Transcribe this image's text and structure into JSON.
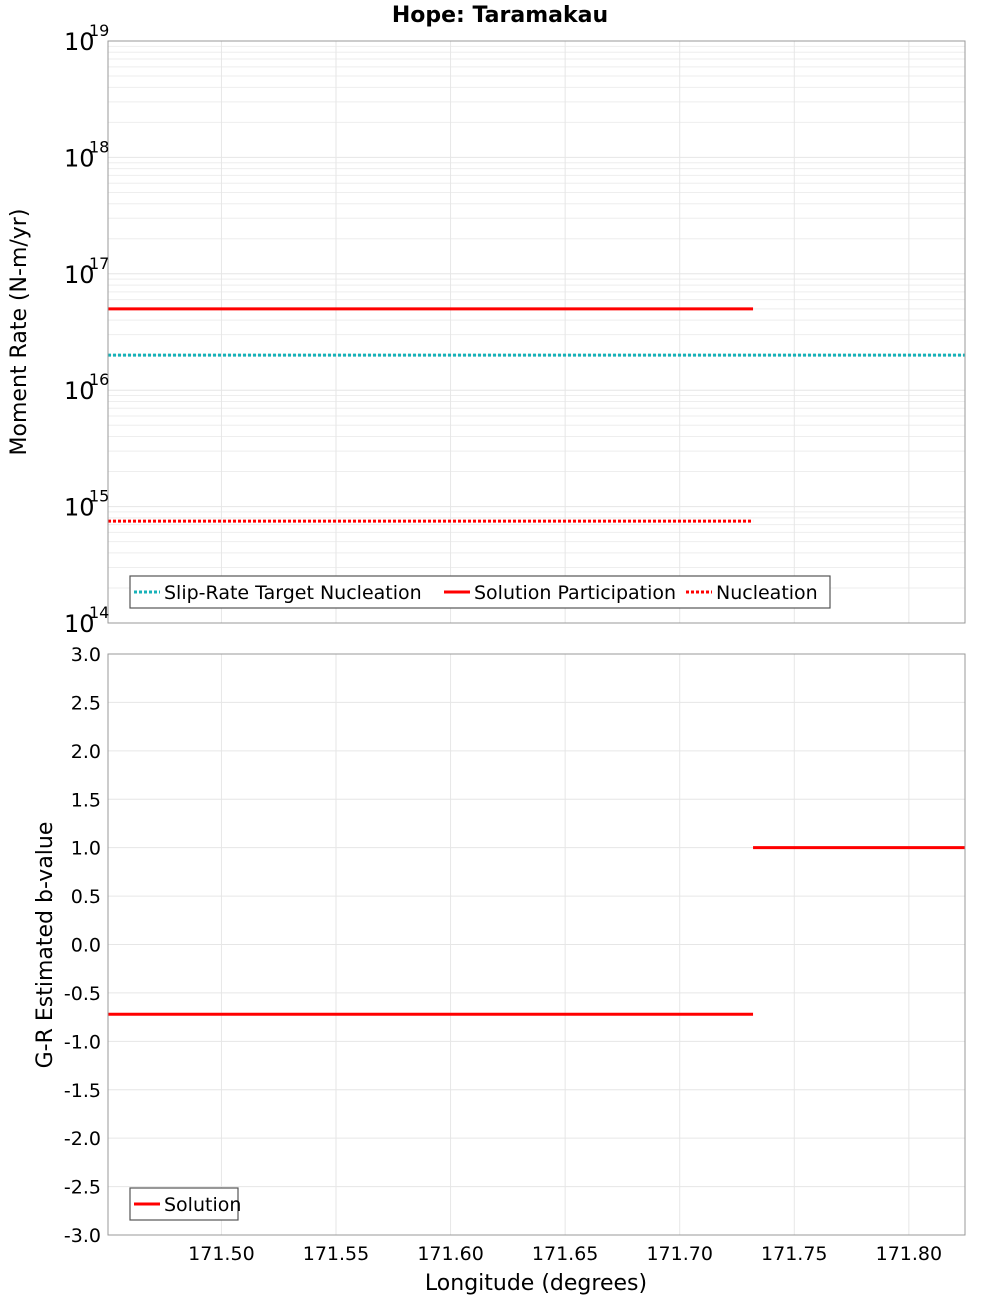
{
  "chart_data": [
    {
      "type": "line",
      "title": "Hope: Taramakau",
      "xlabel": "",
      "ylabel": "Moment Rate (N-m/yr)",
      "yscale": "log",
      "ylim_exp": [
        14,
        19
      ],
      "y_ticks": [
        {
          "base": "10",
          "exp": "14",
          "value": 14
        },
        {
          "base": "10",
          "exp": "15",
          "value": 15
        },
        {
          "base": "10",
          "exp": "16",
          "value": 16
        },
        {
          "base": "10",
          "exp": "17",
          "value": 17
        },
        {
          "base": "10",
          "exp": "18",
          "value": 18
        },
        {
          "base": "10",
          "exp": "19",
          "value": 19
        }
      ],
      "xlim": [
        171.4505,
        171.8245
      ],
      "series": [
        {
          "name": "Slip-Rate Target Nucleation",
          "color": "#17b2b8",
          "style": "dotted",
          "segments": [
            {
              "x0": 171.4505,
              "x1": 171.8245,
              "value": 2e+16
            }
          ]
        },
        {
          "name": "Solution Participation",
          "color": "#ff0000",
          "style": "solid",
          "segments": [
            {
              "x0": 171.4505,
              "x1": 171.732,
              "value": 5e+16
            }
          ]
        },
        {
          "name": "Nucleation",
          "color": "#ff0000",
          "style": "dotted",
          "segments": [
            {
              "x0": 171.4505,
              "x1": 171.732,
              "value": 750000000000000.0
            }
          ]
        }
      ],
      "legend": {
        "location": "bottom-left",
        "orientation": "horizontal"
      }
    },
    {
      "type": "line",
      "title": "",
      "xlabel": "Longitude (degrees)",
      "ylabel": "G-R Estimated b-value",
      "ylim": [
        -3.0,
        3.0
      ],
      "y_ticks": [
        "3.0",
        "2.5",
        "2.0",
        "1.5",
        "1.0",
        "0.5",
        "0.0",
        "-0.5",
        "-1.0",
        "-1.5",
        "-2.0",
        "-2.5",
        "-3.0"
      ],
      "xlim": [
        171.4505,
        171.8245
      ],
      "x_ticks": [
        "171.50",
        "171.55",
        "171.60",
        "171.65",
        "171.70",
        "171.75",
        "171.80"
      ],
      "series": [
        {
          "name": "Solution",
          "color": "#ff0000",
          "style": "solid",
          "segments": [
            {
              "x0": 171.4505,
              "x1": 171.732,
              "value": -0.72
            },
            {
              "x0": 171.732,
              "x1": 171.8245,
              "value": 1.0
            }
          ]
        }
      ],
      "legend": {
        "location": "bottom-left",
        "orientation": "horizontal"
      }
    }
  ]
}
